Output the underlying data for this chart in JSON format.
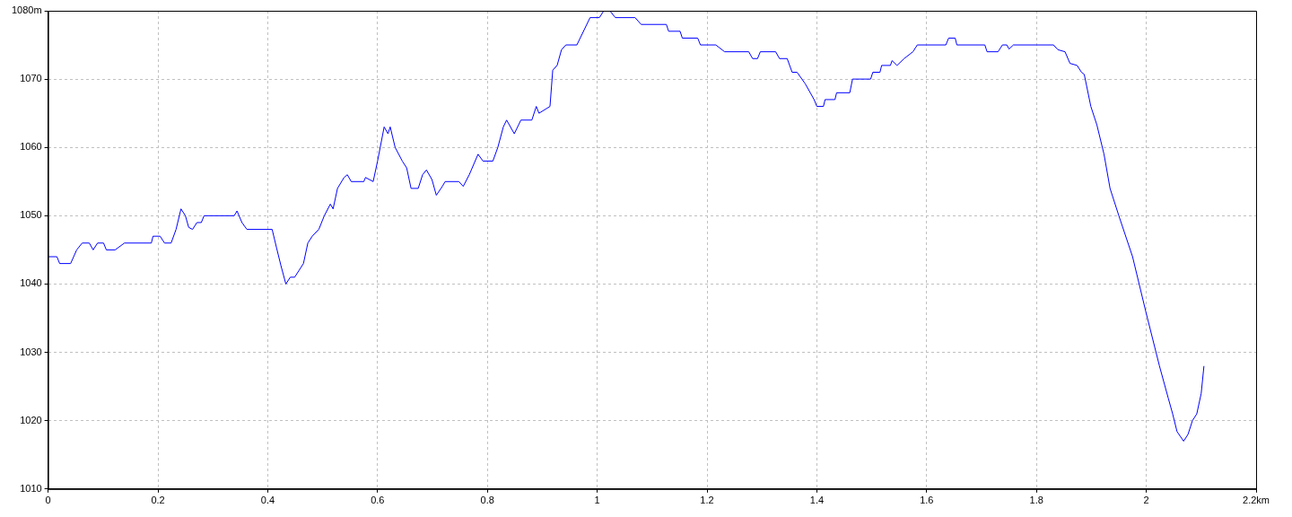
{
  "chart_data": {
    "type": "line",
    "x": [
      0,
      0.016,
      0.021,
      0.041,
      0.052,
      0.062,
      0.075,
      0.082,
      0.09,
      0.101,
      0.106,
      0.122,
      0.139,
      0.188,
      0.191,
      0.204,
      0.212,
      0.224,
      0.233,
      0.242,
      0.25,
      0.256,
      0.263,
      0.271,
      0.279,
      0.284,
      0.339,
      0.344,
      0.353,
      0.362,
      0.408,
      0.416,
      0.424,
      0.433,
      0.441,
      0.449,
      0.457,
      0.465,
      0.473,
      0.481,
      0.493,
      0.503,
      0.514,
      0.519,
      0.527,
      0.539,
      0.545,
      0.552,
      0.575,
      0.578,
      0.592,
      0.6,
      0.612,
      0.619,
      0.623,
      0.632,
      0.645,
      0.653,
      0.661,
      0.674,
      0.682,
      0.689,
      0.699,
      0.707,
      0.718,
      0.723,
      0.748,
      0.756,
      0.767,
      0.783,
      0.792,
      0.81,
      0.819,
      0.829,
      0.835,
      0.849,
      0.861,
      0.881,
      0.889,
      0.894,
      0.914,
      0.919,
      0.927,
      0.935,
      0.943,
      0.963,
      0.987,
      1.004,
      1.012,
      1.023,
      1.033,
      1.069,
      1.08,
      1.126,
      1.13,
      1.151,
      1.155,
      1.183,
      1.188,
      1.216,
      1.232,
      1.276,
      1.283,
      1.292,
      1.297,
      1.325,
      1.332,
      1.346,
      1.355,
      1.364,
      1.379,
      1.395,
      1.4,
      1.412,
      1.415,
      1.433,
      1.436,
      1.46,
      1.465,
      1.498,
      1.502,
      1.515,
      1.518,
      1.534,
      1.537,
      1.546,
      1.559,
      1.575,
      1.583,
      1.635,
      1.64,
      1.652,
      1.655,
      1.706,
      1.71,
      1.73,
      1.738,
      1.746,
      1.75,
      1.758,
      1.831,
      1.839,
      1.852,
      1.861,
      1.874,
      1.882,
      1.887,
      1.899,
      1.91,
      1.923,
      1.934,
      1.95,
      1.975,
      1.999,
      2.024,
      2.04,
      2.048,
      2.056,
      2.068,
      2.076,
      2.084,
      2.092,
      2.1,
      2.105
    ],
    "series": [
      {
        "color": "#0000ff",
        "values": [
          1044,
          1044,
          1043,
          1043,
          1045,
          1046,
          1046,
          1045,
          1046,
          1046,
          1045,
          1045,
          1046,
          1046,
          1047,
          1047,
          1046,
          1046,
          1048,
          1051,
          1050,
          1048.3,
          1048,
          1049,
          1049,
          1050,
          1050,
          1050.7,
          1049,
          1048,
          1048,
          1045.3,
          1042.7,
          1040,
          1041,
          1041,
          1042,
          1043,
          1046,
          1047,
          1048,
          1050,
          1051.7,
          1051,
          1054,
          1055.6,
          1056,
          1055,
          1055,
          1055.6,
          1055,
          1058,
          1063,
          1062,
          1063,
          1060,
          1058,
          1057,
          1054,
          1054,
          1056,
          1056.7,
          1055.3,
          1053,
          1054.3,
          1055,
          1055,
          1054.3,
          1056,
          1059,
          1058,
          1058,
          1060,
          1063,
          1064,
          1062,
          1064,
          1064,
          1066,
          1065,
          1066,
          1071.3,
          1072,
          1074.3,
          1075,
          1075,
          1079,
          1079,
          1080,
          1080,
          1079,
          1079,
          1078,
          1078,
          1077,
          1077,
          1076,
          1076,
          1075,
          1075,
          1074,
          1074,
          1073,
          1073,
          1074,
          1074,
          1073,
          1073,
          1071,
          1071,
          1069.3,
          1067,
          1066,
          1066,
          1067,
          1067,
          1068,
          1068,
          1070,
          1070,
          1071,
          1071,
          1072,
          1072,
          1072.7,
          1072,
          1073,
          1074,
          1075,
          1075,
          1076,
          1076,
          1075,
          1075,
          1074,
          1074,
          1075,
          1075,
          1074.4,
          1075,
          1075,
          1074.3,
          1074,
          1072.3,
          1072,
          1071,
          1070.7,
          1066,
          1063.3,
          1059,
          1054,
          1050,
          1044,
          1036,
          1028,
          1023.3,
          1021,
          1018.4,
          1017,
          1018,
          1020,
          1021,
          1024,
          1028
        ]
      }
    ],
    "xlim": [
      0,
      2.2
    ],
    "xticks": [
      0,
      0.2,
      0.4,
      0.6,
      0.8,
      1,
      1.2,
      1.4,
      1.6,
      1.8,
      2,
      {
        "value": 2.2,
        "label": "2.2km"
      }
    ],
    "ylim": [
      1010,
      1080
    ],
    "yticks": [
      1010,
      1020,
      1030,
      1040,
      1050,
      1060,
      1070,
      {
        "value": 1080,
        "label": "1080m"
      }
    ],
    "grid": true,
    "legend": false,
    "marker": "none",
    "line_style": "solid"
  }
}
